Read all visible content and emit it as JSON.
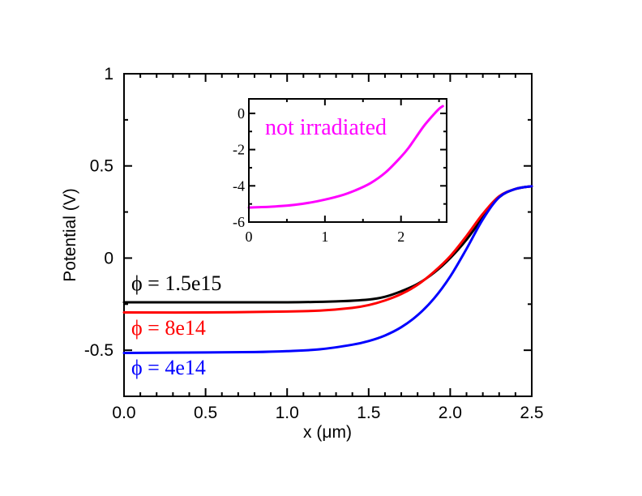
{
  "chart_data": [
    {
      "type": "line",
      "xlabel": "x (μm)",
      "ylabel": "Potential (V)",
      "xlim": [
        0,
        2.5
      ],
      "ylim": [
        -0.75,
        1.0
      ],
      "x_ticks": [
        0.0,
        0.5,
        1.0,
        1.5,
        2.0,
        2.5
      ],
      "x_tick_labels": [
        "0.0",
        "0.5",
        "1.0",
        "1.5",
        "2.0",
        "2.5"
      ],
      "y_ticks": [
        -0.5,
        0,
        0.5,
        1
      ],
      "y_tick_labels": [
        "-0.5",
        "0",
        "0.5",
        "1"
      ],
      "series": [
        {
          "name": "ϕ = 1.5e15",
          "color": "#000000",
          "x": [
            0,
            0.5,
            1.0,
            1.3,
            1.5,
            1.6,
            1.7,
            1.8,
            1.9,
            2.0,
            2.1,
            2.2,
            2.3,
            2.4,
            2.5
          ],
          "y": [
            -0.24,
            -0.24,
            -0.24,
            -0.235,
            -0.225,
            -0.21,
            -0.18,
            -0.14,
            -0.08,
            0.0,
            0.1,
            0.22,
            0.33,
            0.375,
            0.39
          ]
        },
        {
          "name": "ϕ = 8e14",
          "color": "#ff0000",
          "x": [
            0,
            0.5,
            1.0,
            1.2,
            1.4,
            1.5,
            1.6,
            1.7,
            1.8,
            1.9,
            2.0,
            2.1,
            2.2,
            2.3,
            2.4,
            2.5
          ],
          "y": [
            -0.295,
            -0.295,
            -0.29,
            -0.285,
            -0.27,
            -0.255,
            -0.23,
            -0.195,
            -0.145,
            -0.075,
            0.01,
            0.12,
            0.24,
            0.335,
            0.375,
            0.39
          ]
        },
        {
          "name": "ϕ = 4e14",
          "color": "#0000ff",
          "x": [
            0,
            0.5,
            0.8,
            1.0,
            1.2,
            1.4,
            1.5,
            1.6,
            1.7,
            1.8,
            1.9,
            2.0,
            2.1,
            2.2,
            2.3,
            2.4,
            2.5
          ],
          "y": [
            -0.515,
            -0.512,
            -0.51,
            -0.505,
            -0.495,
            -0.47,
            -0.45,
            -0.42,
            -0.375,
            -0.31,
            -0.22,
            -0.1,
            0.05,
            0.21,
            0.33,
            0.375,
            0.39
          ]
        }
      ],
      "annotations": [
        "ϕ = 1.5e15",
        "ϕ = 8e14",
        "ϕ = 4e14"
      ]
    },
    {
      "type": "line",
      "xlabel": "",
      "ylabel": "",
      "xlim": [
        0,
        2.6
      ],
      "ylim": [
        -6,
        0.8
      ],
      "x_ticks": [
        0,
        1,
        2
      ],
      "x_tick_labels": [
        "0",
        "1",
        "2"
      ],
      "y_ticks": [
        -6,
        -4,
        -2,
        0
      ],
      "y_tick_labels": [
        "-6",
        "-4",
        "-2",
        "0"
      ],
      "series": [
        {
          "name": "not irradiated",
          "color": "#ff00ff",
          "x": [
            0,
            0.3,
            0.6,
            0.9,
            1.2,
            1.4,
            1.6,
            1.8,
            2.0,
            2.1,
            2.2,
            2.3,
            2.4,
            2.5,
            2.55
          ],
          "y": [
            -5.2,
            -5.15,
            -5.05,
            -4.85,
            -4.55,
            -4.25,
            -3.85,
            -3.25,
            -2.4,
            -1.9,
            -1.3,
            -0.7,
            -0.2,
            0.25,
            0.4
          ]
        }
      ],
      "annotations": [
        "not irradiated"
      ]
    }
  ]
}
